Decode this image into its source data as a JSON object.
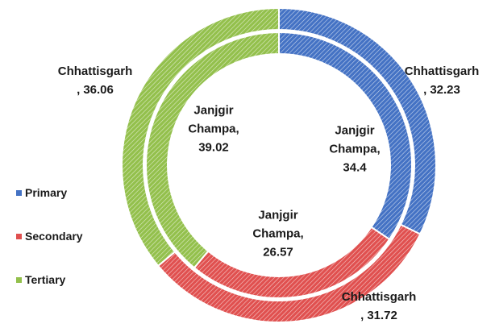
{
  "chart_data": {
    "type": "donut",
    "categories": [
      "Primary",
      "Secondary",
      "Tertiary"
    ],
    "colors": [
      "#4472c4",
      "#e0504f",
      "#93c04c"
    ],
    "label_separator": ",",
    "series": [
      {
        "name": "Chhattisgarh",
        "values": [
          32.23,
          31.72,
          36.06
        ]
      },
      {
        "name": "Janjgir Champa",
        "values": [
          34.4,
          26.57,
          39.02
        ]
      }
    ],
    "legend": "left"
  }
}
